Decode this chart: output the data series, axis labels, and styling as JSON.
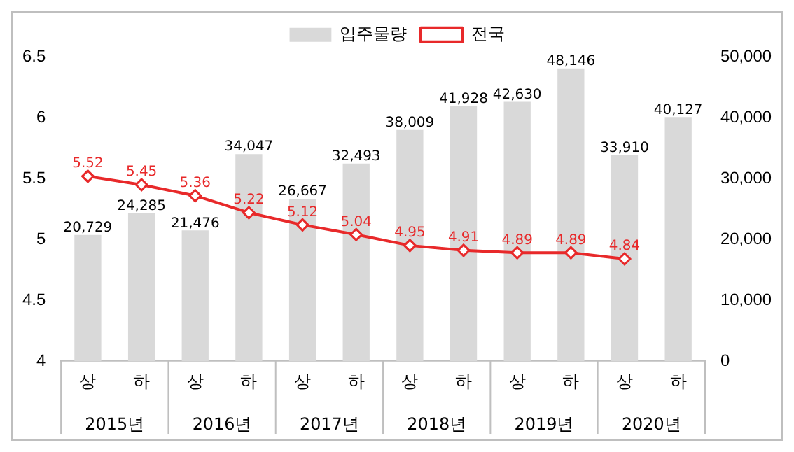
{
  "chart_data": {
    "type": "bar",
    "categories": [
      "상",
      "하",
      "상",
      "하",
      "상",
      "하",
      "상",
      "하",
      "상",
      "하",
      "상",
      "하"
    ],
    "annotations": [
      "2015년",
      "2016년",
      "2017년",
      "2018년",
      "2019년",
      "2020년"
    ],
    "series": [
      {
        "name": "입주물량",
        "axis": "y2",
        "color": "#d9d9d9",
        "values": [
          20729,
          24285,
          21476,
          34047,
          26667,
          32493,
          38009,
          41928,
          42630,
          48146,
          33910,
          40127
        ],
        "value_labels": [
          "20,729",
          "24,285",
          "21,476",
          "34,047",
          "26,667",
          "32,493",
          "38,009",
          "41,928",
          "42,630",
          "48,146",
          "33,910",
          "40,127"
        ]
      },
      {
        "name": "전국",
        "type": "line",
        "color": "#e8292a",
        "marker": "diamond",
        "values": [
          5.52,
          5.45,
          5.36,
          5.22,
          5.12,
          5.04,
          4.95,
          4.91,
          4.89,
          4.89,
          4.84,
          null
        ],
        "value_labels": [
          "5.52",
          "5.45",
          "5.36",
          "5.22",
          "5.12",
          "5.04",
          "4.95",
          "4.91",
          "4.89",
          "4.89",
          "4.84",
          null
        ]
      }
    ],
    "ylim": [
      4,
      6.5
    ],
    "yticks": [
      4,
      4.5,
      5,
      5.5,
      6,
      6.5
    ],
    "y2lim": [
      0,
      50000
    ],
    "y2ticks": [
      {
        "value": 0,
        "label": "0"
      },
      {
        "value": 10000,
        "label": "10,000"
      },
      {
        "value": 20000,
        "label": "20,000"
      },
      {
        "value": 30000,
        "label": "30,000"
      },
      {
        "value": 40000,
        "label": "40,000"
      },
      {
        "value": 50000,
        "label": "50,000"
      }
    ],
    "legend": "top",
    "grid": false
  }
}
